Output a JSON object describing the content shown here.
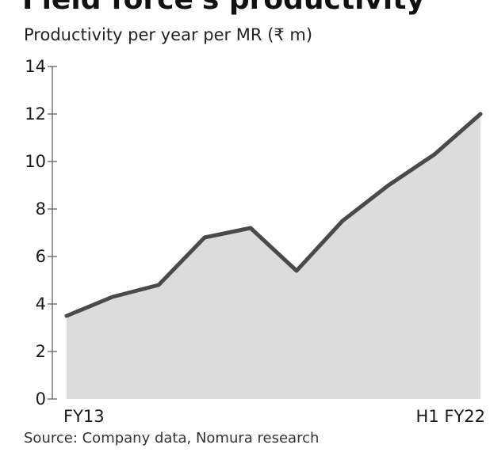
{
  "title": "Field force's productivity",
  "subtitle": "Productivity per year per MR (₹ m)",
  "source": "Source: Company data, Nomura research",
  "colors": {
    "line": "#4a4a4a",
    "area": "#dcdcdc",
    "axis": "#555555"
  },
  "chart_data": {
    "type": "area",
    "title": "Field force's productivity",
    "subtitle": "Productivity per year per MR (₹ m)",
    "xlabel": "",
    "ylabel": "",
    "ylim": [
      0,
      14
    ],
    "yticks": [
      0,
      2,
      4,
      6,
      8,
      10,
      12,
      14
    ],
    "x_tick_labels": [
      "FY13",
      "H1 FY22"
    ],
    "grid": false,
    "legend": "none",
    "series": [
      {
        "values": [
          3.5,
          4.3,
          4.8,
          6.8,
          7.2,
          5.4,
          7.5,
          9.0,
          10.3,
          12.0
        ]
      }
    ]
  }
}
